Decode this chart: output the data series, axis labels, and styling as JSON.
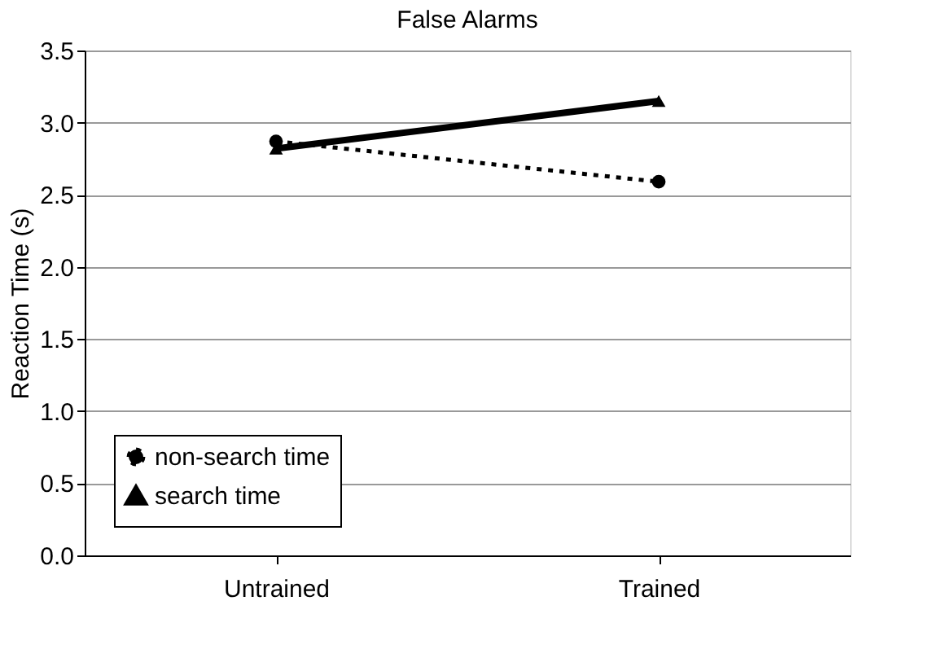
{
  "chart_data": {
    "type": "line",
    "title": "False Alarms",
    "ylabel": "Reaction Time (s)",
    "categories": [
      "Untrained",
      "Trained"
    ],
    "series": [
      {
        "name": "non-search time",
        "color": "#000000",
        "values": [
          2.87,
          2.59
        ],
        "marker": "circle",
        "line_style": "dotted"
      },
      {
        "name": "search time",
        "color": "#000000",
        "values": [
          2.82,
          3.15
        ],
        "marker": "triangle",
        "line_style": "solid"
      }
    ],
    "ylim": [
      0,
      3.5
    ],
    "yticks": [
      {
        "value": 0,
        "label": "0.0"
      },
      0.5,
      {
        "value": 1,
        "label": "1.0"
      },
      1.5,
      {
        "value": 2,
        "label": "2.0"
      },
      2.5,
      {
        "value": 3,
        "label": "3.0"
      },
      3.5
    ],
    "grid": "y",
    "legend": "bottom left"
  }
}
